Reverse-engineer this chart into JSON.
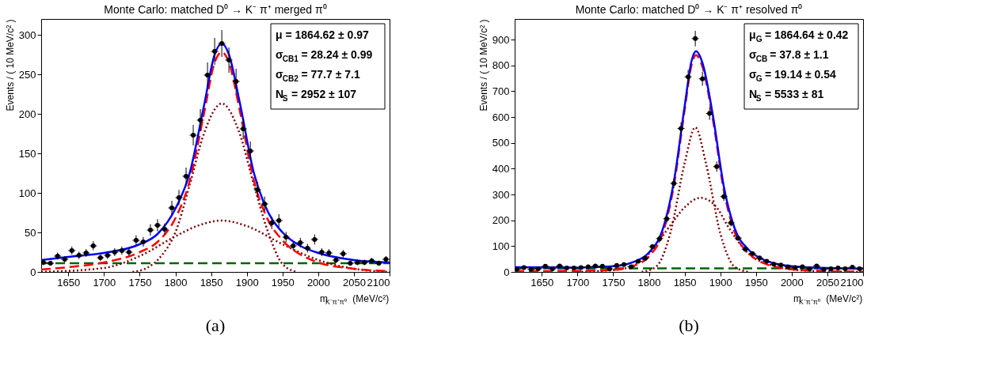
{
  "chart_data": [
    {
      "type": "scatter",
      "title": "Monte Carlo: matched D⁰ → K⁻ π⁺ merged π⁰",
      "xlabel": "m$_{K⁻π⁺π⁰}$ (MeV/c²)",
      "ylabel": "Events / ( 10 MeV/c² )",
      "xlim": [
        1612,
        2100
      ],
      "ylim": [
        0,
        320
      ],
      "xticks": [
        1650,
        1700,
        1750,
        1800,
        1850,
        1900,
        1950,
        2000,
        2050,
        2100
      ],
      "yticks": [
        0,
        50,
        100,
        150,
        200,
        250,
        300
      ],
      "annotations": [
        "μ = 1864.62 ± 0.97",
        "σ$_{CB1}$ = 28.24 ± 0.99",
        "σ$_{CB2}$ = 77.7 ± 7.1",
        "N$_{S}$ = 2952 ± 107",
        "(a)"
      ],
      "series": [
        {
          "color": "#000000",
          "marker": "circle",
          "x": [
            1615,
            1625,
            1635,
            1645,
            1655,
            1665,
            1675,
            1685,
            1695,
            1705,
            1715,
            1725,
            1735,
            1745,
            1755,
            1765,
            1775,
            1785,
            1795,
            1805,
            1815,
            1825,
            1835,
            1845,
            1855,
            1865,
            1875,
            1885,
            1895,
            1905,
            1915,
            1925,
            1935,
            1945,
            1955,
            1965,
            1975,
            1985,
            1995,
            2005,
            2015,
            2025,
            2035,
            2045,
            2055,
            2065,
            2075,
            2085,
            2095
          ],
          "values": [
            12,
            11,
            20,
            16,
            27,
            21,
            24,
            33,
            18,
            21,
            25,
            27,
            25,
            40,
            38,
            53,
            59,
            54,
            81,
            94,
            121,
            173,
            192,
            249,
            279,
            289,
            268,
            241,
            181,
            153,
            104,
            86,
            62,
            65,
            44,
            33,
            37,
            30,
            41,
            25,
            24,
            15,
            23,
            11,
            12,
            12,
            14,
            11,
            16
          ],
          "errors": [
            3.5,
            3.2,
            4.5,
            4,
            5.2,
            4.6,
            4.9,
            5.7,
            4.2,
            4.6,
            5,
            5.2,
            5,
            6.3,
            6.2,
            7.3,
            7.7,
            7.3,
            9,
            9.7,
            11,
            13,
            14,
            16,
            17,
            17,
            16,
            16,
            13,
            12,
            10,
            9.3,
            7.9,
            8.1,
            6.6,
            5.7,
            6.1,
            5.5,
            6.4,
            5,
            4.9,
            3.9,
            4.8,
            3.3,
            3.5,
            3.5,
            3.7,
            3.2,
            4
          ],
          "xerrors": [
            5,
            5,
            5,
            5,
            5,
            5,
            5,
            5,
            5,
            5,
            5,
            5,
            5,
            5,
            5,
            5,
            5,
            5,
            5,
            5,
            5,
            5,
            5,
            5,
            5,
            5,
            5,
            5,
            5,
            5,
            5,
            5,
            5,
            5,
            5,
            5,
            5,
            5,
            5,
            5,
            5,
            5,
            5,
            5,
            5,
            5,
            5,
            5,
            5
          ]
        },
        {
          "type": "line",
          "color": "#006400",
          "line_style": "dashed",
          "x": [
            1612,
            2100
          ],
          "values": [
            11,
            11
          ]
        },
        {
          "type": "line",
          "color": "#7a0000",
          "line_style": "dotted",
          "x": [
            1740,
            1760,
            1780,
            1800,
            1820,
            1840,
            1865,
            1890,
            1910,
            1930,
            1950,
            1970
          ],
          "values": [
            0,
            5,
            20,
            50,
            110,
            175,
            213,
            175,
            110,
            50,
            10,
            0
          ]
        },
        {
          "type": "line",
          "color": "#7a0000",
          "line_style": "dotted",
          "x": [
            1612,
            1700,
            1750,
            1800,
            1830,
            1865,
            1900,
            1950,
            2000,
            2050,
            2100
          ],
          "values": [
            0,
            5,
            20,
            45,
            58,
            65,
            58,
            35,
            15,
            4,
            0
          ]
        },
        {
          "type": "line",
          "color": "#ff0000",
          "line_style": "dashed",
          "x": [
            1612,
            1650,
            1700,
            1750,
            1775,
            1800,
            1820,
            1840,
            1855,
            1865,
            1875,
            1890,
            1910,
            1925,
            1950,
            1975,
            2000,
            2050,
            2100
          ],
          "values": [
            3,
            6,
            12,
            25,
            38,
            68,
            115,
            200,
            265,
            278,
            265,
            205,
            115,
            75,
            40,
            22,
            12,
            4,
            1
          ]
        },
        {
          "type": "line",
          "color": "#0000ff",
          "line_style": "solid",
          "x": [
            1612,
            1650,
            1700,
            1750,
            1775,
            1800,
            1820,
            1840,
            1855,
            1865,
            1875,
            1890,
            1910,
            1925,
            1950,
            1975,
            2000,
            2050,
            2100
          ],
          "values": [
            15,
            19,
            24,
            35,
            48,
            80,
            125,
            210,
            275,
            289,
            275,
            215,
            125,
            85,
            50,
            33,
            24,
            15,
            12
          ]
        }
      ]
    },
    {
      "type": "scatter",
      "title": "Monte Carlo: matched D⁰ → K⁻ π⁺ resolved π⁰",
      "xlabel": "m$_{K⁻π⁺π⁰}$ (MeV/c²)",
      "ylabel": "Events / ( 10 MeV/c² )",
      "xlim": [
        1612,
        2100
      ],
      "ylim": [
        0,
        980
      ],
      "xticks": [
        1650,
        1700,
        1750,
        1800,
        1850,
        1900,
        1950,
        2000,
        2050,
        2100
      ],
      "yticks": [
        0,
        100,
        200,
        300,
        400,
        500,
        600,
        700,
        800,
        900
      ],
      "annotations": [
        "μ$_{G}$ = 1864.64 ± 0.42",
        "σ$_{CB}$ = 37.8 ± 1.1",
        "σ$_{G}$ = 19.14 ± 0.54",
        "N$_{S}$ = 5533 ± 81",
        "(b)"
      ],
      "series": [
        {
          "color": "#000000",
          "marker": "circle",
          "x": [
            1615,
            1625,
            1635,
            1645,
            1655,
            1665,
            1675,
            1685,
            1695,
            1705,
            1715,
            1725,
            1735,
            1745,
            1755,
            1765,
            1775,
            1785,
            1795,
            1805,
            1815,
            1825,
            1835,
            1845,
            1855,
            1865,
            1875,
            1885,
            1895,
            1905,
            1915,
            1925,
            1935,
            1945,
            1955,
            1965,
            1975,
            1985,
            1995,
            2005,
            2015,
            2025,
            2035,
            2045,
            2055,
            2065,
            2075,
            2085,
            2095
          ],
          "values": [
            10,
            17,
            10,
            12,
            22,
            12,
            23,
            15,
            15,
            17,
            20,
            23,
            22,
            12,
            25,
            28,
            20,
            41,
            53,
            98,
            129,
            206,
            343,
            556,
            756,
            904,
            748,
            614,
            408,
            292,
            190,
            131,
            88,
            71,
            54,
            41,
            30,
            27,
            20,
            17,
            20,
            12,
            23,
            10,
            12,
            15,
            12,
            18,
            12
          ],
          "errors": [
            3.2,
            4.1,
            3.2,
            3.5,
            4.7,
            3.5,
            4.8,
            3.9,
            3.9,
            4.1,
            4.5,
            4.8,
            4.7,
            3.5,
            5,
            5.3,
            4.5,
            6.4,
            7.3,
            9.9,
            11,
            14,
            19,
            24,
            27,
            30,
            27,
            25,
            20,
            17,
            14,
            11,
            9.4,
            8.4,
            7.3,
            6.4,
            5.5,
            5.2,
            4.5,
            4.1,
            4.5,
            3.5,
            4.8,
            3.2,
            3.5,
            3.9,
            3.5,
            4.2,
            3.5
          ],
          "xerrors": [
            5,
            5,
            5,
            5,
            5,
            5,
            5,
            5,
            5,
            5,
            5,
            5,
            5,
            5,
            5,
            5,
            5,
            5,
            5,
            5,
            5,
            5,
            5,
            5,
            5,
            5,
            5,
            5,
            5,
            5,
            5,
            5,
            5,
            5,
            5,
            5,
            5,
            5,
            5,
            5,
            5,
            5,
            5,
            5,
            5,
            5,
            5,
            5,
            5
          ]
        },
        {
          "type": "line",
          "color": "#006400",
          "line_style": "dashed",
          "x": [
            1612,
            2100
          ],
          "values": [
            14,
            14
          ]
        },
        {
          "type": "line",
          "color": "#7a0000",
          "line_style": "dotted",
          "x": [
            1790,
            1810,
            1830,
            1850,
            1865,
            1880,
            1900,
            1920,
            1940
          ],
          "values": [
            0,
            20,
            150,
            420,
            560,
            420,
            150,
            20,
            0
          ]
        },
        {
          "type": "line",
          "color": "#7a0000",
          "line_style": "dotted",
          "x": [
            1700,
            1760,
            1800,
            1830,
            1850,
            1872,
            1895,
            1910,
            1940,
            1980,
            2020,
            2100
          ],
          "values": [
            0,
            10,
            70,
            180,
            250,
            287,
            250,
            180,
            70,
            20,
            5,
            0
          ]
        },
        {
          "type": "line",
          "color": "#ff0000",
          "line_style": "dashed",
          "x": [
            1612,
            1700,
            1750,
            1780,
            1800,
            1820,
            1835,
            1850,
            1860,
            1866,
            1875,
            1890,
            1905,
            1920,
            1940,
            1960,
            2000,
            2050,
            2100
          ],
          "values": [
            3,
            4,
            8,
            25,
            60,
            155,
            335,
            625,
            805,
            840,
            795,
            585,
            315,
            155,
            72,
            35,
            10,
            3,
            1
          ]
        },
        {
          "type": "line",
          "color": "#0000ff",
          "line_style": "solid",
          "x": [
            1612,
            1700,
            1750,
            1780,
            1800,
            1820,
            1835,
            1850,
            1860,
            1866,
            1875,
            1890,
            1905,
            1920,
            1940,
            1960,
            2000,
            2050,
            2100
          ],
          "values": [
            18,
            17,
            22,
            40,
            75,
            170,
            350,
            640,
            820,
            855,
            810,
            600,
            330,
            170,
            85,
            48,
            22,
            15,
            12
          ]
        }
      ]
    }
  ]
}
